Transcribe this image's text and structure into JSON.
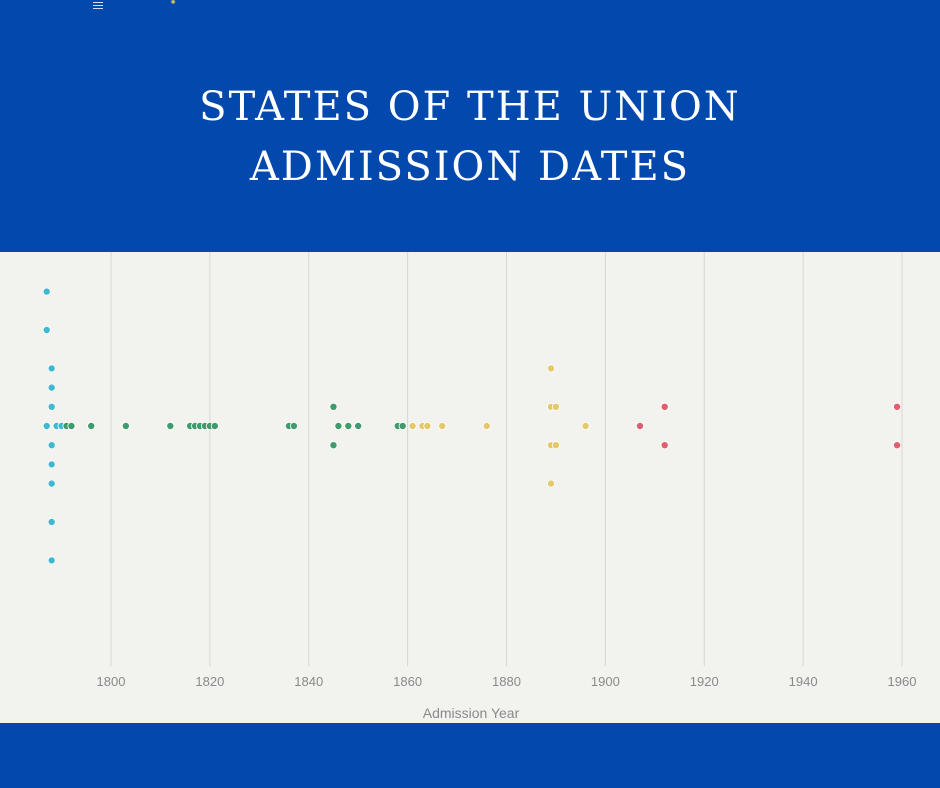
{
  "header": {
    "title_line1": "STATES OF THE UNION",
    "title_line2": "ADMISSION DATES",
    "menu_icon": "hamburger-menu-icon",
    "logo_icon": "seal-logo-icon",
    "background_color": "#0349ad",
    "title_color": "#ffffff"
  },
  "chart_data": {
    "type": "scatter",
    "title": "",
    "xlabel": "Admission Year",
    "ylabel": "",
    "xlim": [
      1780,
      1968
    ],
    "xticks": [
      1800,
      1820,
      1840,
      1860,
      1880,
      1900,
      1920,
      1940,
      1960
    ],
    "grid": "vertical",
    "background_color": "#f2f2ee",
    "note": "dot-density strip; points stacked vertically by year, row 0 is center line",
    "series": [
      {
        "color": "#3fb8d0",
        "points": [
          {
            "x": 1787,
            "row": -7
          },
          {
            "x": 1787,
            "row": -5
          },
          {
            "x": 1788,
            "row": -3
          },
          {
            "x": 1788,
            "row": -2
          },
          {
            "x": 1788,
            "row": -1
          },
          {
            "x": 1787,
            "row": 0
          },
          {
            "x": 1788,
            "row": 1
          },
          {
            "x": 1788,
            "row": 2
          },
          {
            "x": 1788,
            "row": 3
          },
          {
            "x": 1788,
            "row": 5
          },
          {
            "x": 1788,
            "row": 7
          },
          {
            "x": 1789,
            "row": 0
          },
          {
            "x": 1790,
            "row": 0
          }
        ]
      },
      {
        "color": "#3f9a6c",
        "points": [
          {
            "x": 1791,
            "row": 0
          },
          {
            "x": 1792,
            "row": 0
          },
          {
            "x": 1796,
            "row": 0
          },
          {
            "x": 1803,
            "row": 0
          },
          {
            "x": 1812,
            "row": 0
          },
          {
            "x": 1816,
            "row": 0
          },
          {
            "x": 1817,
            "row": 0
          },
          {
            "x": 1818,
            "row": 0
          },
          {
            "x": 1819,
            "row": 0
          },
          {
            "x": 1820,
            "row": 0
          },
          {
            "x": 1821,
            "row": 0
          },
          {
            "x": 1836,
            "row": 0
          },
          {
            "x": 1837,
            "row": 0
          },
          {
            "x": 1845,
            "row": -1
          },
          {
            "x": 1845,
            "row": 1
          },
          {
            "x": 1846,
            "row": 0
          },
          {
            "x": 1848,
            "row": 0
          },
          {
            "x": 1850,
            "row": 0
          },
          {
            "x": 1858,
            "row": 0
          },
          {
            "x": 1859,
            "row": 0
          }
        ]
      },
      {
        "color": "#e3c96a",
        "points": [
          {
            "x": 1861,
            "row": 0
          },
          {
            "x": 1863,
            "row": 0
          },
          {
            "x": 1864,
            "row": 0
          },
          {
            "x": 1867,
            "row": 0
          },
          {
            "x": 1876,
            "row": 0
          },
          {
            "x": 1889,
            "row": -3
          },
          {
            "x": 1889,
            "row": -1
          },
          {
            "x": 1890,
            "row": -1
          },
          {
            "x": 1889,
            "row": 1
          },
          {
            "x": 1890,
            "row": 1
          },
          {
            "x": 1889,
            "row": 3
          },
          {
            "x": 1896,
            "row": 0
          }
        ]
      },
      {
        "color": "#e25d6e",
        "points": [
          {
            "x": 1907,
            "row": 0
          },
          {
            "x": 1912,
            "row": -1
          },
          {
            "x": 1912,
            "row": 1
          },
          {
            "x": 1959,
            "row": -1
          },
          {
            "x": 1959,
            "row": 1
          }
        ]
      }
    ]
  }
}
